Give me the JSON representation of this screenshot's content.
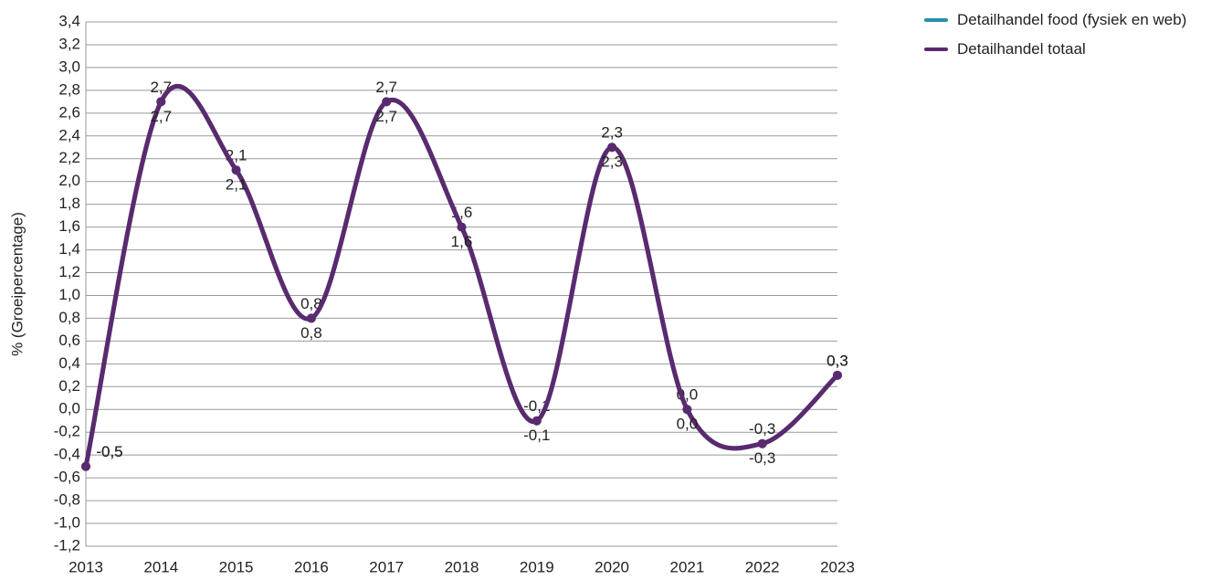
{
  "chart_data": {
    "type": "line",
    "y_label": "% (Groeipercentage)",
    "categories": [
      "2013",
      "2014",
      "2015",
      "2016",
      "2017",
      "2018",
      "2019",
      "2020",
      "2021",
      "2022",
      "2023"
    ],
    "series": [
      {
        "name": "Detailhandel food (fysiek en web)",
        "color": "#2a8fa8",
        "values": [
          -0.5,
          2.7,
          2.1,
          0.8,
          2.7,
          1.6,
          -0.1,
          2.3,
          0.0,
          -0.3,
          0.3
        ],
        "value_labels": [
          "-0,5",
          "2,7",
          "2,1",
          "0,8",
          "2,7",
          "1,6",
          "-0,1",
          "2,3",
          "0,0",
          "-0,3",
          "0,3"
        ]
      },
      {
        "name": "Detailhandel totaal",
        "color": "#5b2a6e",
        "values": [
          -0.5,
          2.7,
          2.1,
          0.8,
          2.7,
          1.6,
          -0.1,
          2.3,
          0.0,
          -0.3,
          0.3
        ],
        "value_labels": [
          "-0,5",
          "2,7",
          "2,1",
          "0,8",
          "2,7",
          "1,6",
          "-0,1",
          "2,3",
          "0,0",
          "-0,3",
          "0,3"
        ]
      }
    ],
    "ylim": [
      -1.2,
      3.4
    ],
    "yticks": [
      {
        "value": -1.2,
        "label": "-1,2"
      },
      {
        "value": -1.0,
        "label": "-1,0"
      },
      {
        "value": -0.8,
        "label": "-0,8"
      },
      {
        "value": -0.6,
        "label": "-0,6"
      },
      {
        "value": -0.4,
        "label": "-0,4"
      },
      {
        "value": -0.2,
        "label": "-0,2"
      },
      {
        "value": 0.0,
        "label": "0,0"
      },
      {
        "value": 0.2,
        "label": "0,2"
      },
      {
        "value": 0.4,
        "label": "0,4"
      },
      {
        "value": 0.6,
        "label": "0,6"
      },
      {
        "value": 0.8,
        "label": "0,8"
      },
      {
        "value": 1.0,
        "label": "1,0"
      },
      {
        "value": 1.2,
        "label": "1,2"
      },
      {
        "value": 1.4,
        "label": "1,4"
      },
      {
        "value": 1.6,
        "label": "1,6"
      },
      {
        "value": 1.8,
        "label": "1,8"
      },
      {
        "value": 2.0,
        "label": "2,0"
      },
      {
        "value": 2.2,
        "label": "2,2"
      },
      {
        "value": 2.4,
        "label": "2,4"
      },
      {
        "value": 2.6,
        "label": "2,6"
      },
      {
        "value": 2.8,
        "label": "2,8"
      },
      {
        "value": 3.0,
        "label": "3,0"
      },
      {
        "value": 3.2,
        "label": "3,2"
      },
      {
        "value": 3.4,
        "label": "3,4"
      }
    ],
    "grid": true,
    "legend": "top-right"
  }
}
